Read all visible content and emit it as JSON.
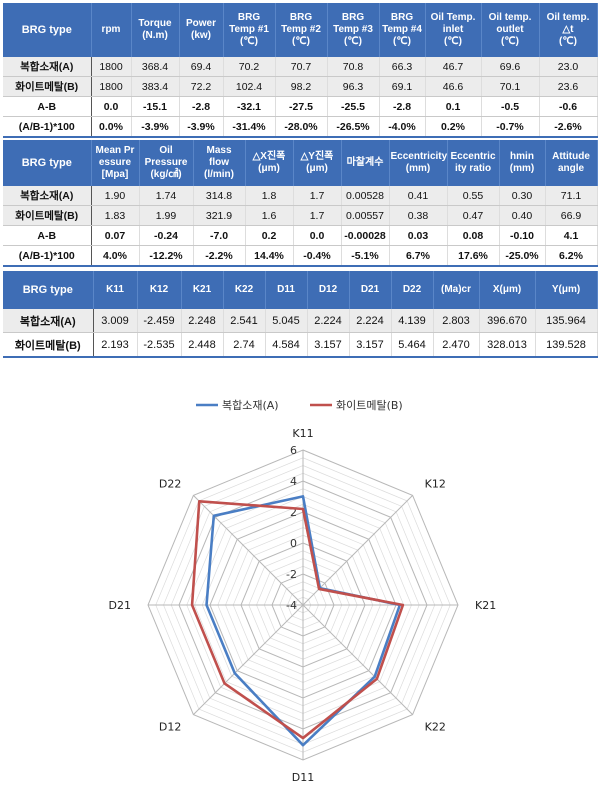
{
  "table1": {
    "headers": [
      "BRG type",
      "rpm",
      "Torque\n(N.m)",
      "Power\n(kw)",
      "BRG\nTemp #1\n(℃)",
      "BRG\nTemp #2\n(℃)",
      "BRG\nTemp #3\n(℃)",
      "BRG\nTemp #4\n(℃)",
      "Oil Temp.\ninlet\n(℃)",
      "Oil temp.\noutlet\n(℃)",
      "Oil temp.\n△t\n(℃)"
    ],
    "rows": [
      [
        "복합소재(A)",
        "1800",
        "368.4",
        "69.4",
        "70.2",
        "70.7",
        "70.8",
        "66.3",
        "46.7",
        "69.6",
        "23.0"
      ],
      [
        "화이트메탈(B)",
        "1800",
        "383.4",
        "72.2",
        "102.4",
        "98.2",
        "96.3",
        "69.1",
        "46.6",
        "70.1",
        "23.6"
      ],
      [
        "A-B",
        "0.0",
        "-15.1",
        "-2.8",
        "-32.1",
        "-27.5",
        "-25.5",
        "-2.8",
        "0.1",
        "-0.5",
        "-0.6"
      ],
      [
        "(A/B-1)*100",
        "0.0%",
        "-3.9%",
        "-3.9%",
        "-31.4%",
        "-28.0%",
        "-26.5%",
        "-4.0%",
        "0.2%",
        "-0.7%",
        "-2.6%"
      ]
    ]
  },
  "table2": {
    "headers": [
      "BRG type",
      "Mean Pr\nessure\n[Mpa]",
      "Oil\nPressure\n(kg/㎠)",
      "Mass\nflow\n(l/min)",
      "△X진폭\n(μm)",
      "△Y진폭\n(μm)",
      "마찰계수",
      "Eccentricity\n(mm)",
      "Eccentric\nity ratio",
      "hmin\n(mm)",
      "Attitude\nangle"
    ],
    "rows": [
      [
        "복합소재(A)",
        "1.90",
        "1.74",
        "314.8",
        "1.8",
        "1.7",
        "0.00528",
        "0.41",
        "0.55",
        "0.30",
        "71.1"
      ],
      [
        "화이트메탈(B)",
        "1.83",
        "1.99",
        "321.9",
        "1.6",
        "1.7",
        "0.00557",
        "0.38",
        "0.47",
        "0.40",
        "66.9"
      ],
      [
        "A-B",
        "0.07",
        "-0.24",
        "-7.0",
        "0.2",
        "0.0",
        "-0.00028",
        "0.03",
        "0.08",
        "-0.10",
        "4.1"
      ],
      [
        "(A/B-1)*100",
        "4.0%",
        "-12.2%",
        "-2.2%",
        "14.4%",
        "-0.4%",
        "-5.1%",
        "6.7%",
        "17.6%",
        "-25.0%",
        "6.2%"
      ]
    ]
  },
  "table3": {
    "headers": [
      "BRG type",
      "K11",
      "K12",
      "K21",
      "K22",
      "D11",
      "D12",
      "D21",
      "D22",
      "(Ma)cr",
      "X(μm)",
      "Y(μm)"
    ],
    "rows": [
      [
        "복합소재(A)",
        "3.009",
        "-2.459",
        "2.248",
        "2.541",
        "5.045",
        "2.224",
        "2.224",
        "4.139",
        "2.803",
        "396.670",
        "135.964"
      ],
      [
        "화이트메탈(B)",
        "2.193",
        "-2.535",
        "2.448",
        "2.74",
        "4.584",
        "3.157",
        "3.157",
        "5.464",
        "2.470",
        "328.013",
        "139.528"
      ]
    ]
  },
  "chart_data": {
    "type": "radar",
    "categories": [
      "K11",
      "K12",
      "K21",
      "K22",
      "D11",
      "D12",
      "D21",
      "D22"
    ],
    "series": [
      {
        "name": "복합소재(A)",
        "color": "#4a7ec4",
        "values": [
          3.009,
          -2.459,
          2.248,
          2.541,
          5.045,
          2.224,
          2.224,
          4.139
        ]
      },
      {
        "name": "화이트메탈(B)",
        "color": "#c0504d",
        "values": [
          2.193,
          -2.535,
          2.448,
          2.74,
          4.584,
          3.157,
          3.157,
          5.464
        ]
      }
    ],
    "rlim": [
      -4,
      6
    ],
    "ticks": [
      "-4",
      "-2",
      "0",
      "2",
      "4",
      "6"
    ],
    "minor_step": 0.5,
    "grid": true,
    "legend_position": "top"
  }
}
